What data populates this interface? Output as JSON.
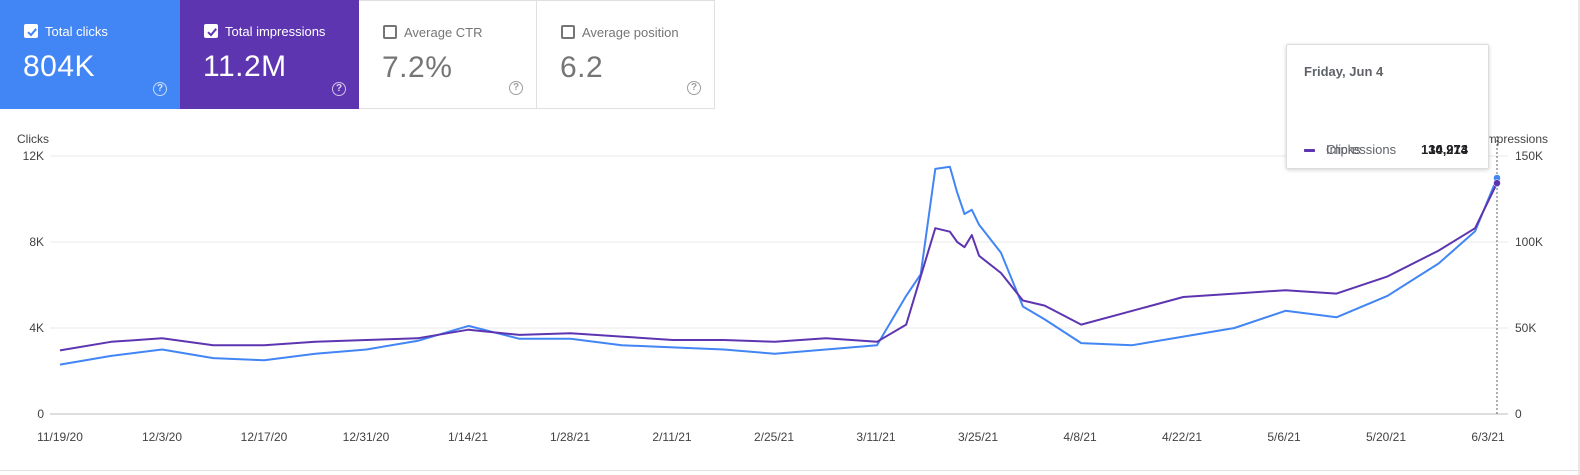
{
  "cards": [
    {
      "label": "Total clicks",
      "value": "804K",
      "active": true,
      "color": "#4285f4"
    },
    {
      "label": "Total impressions",
      "value": "11.2M",
      "active": true,
      "color": "#5e35b1"
    },
    {
      "label": "Average CTR",
      "value": "7.2%",
      "active": false,
      "color": "#ffffff"
    },
    {
      "label": "Average position",
      "value": "6.2",
      "active": false,
      "color": "#ffffff"
    }
  ],
  "help_glyph": "?",
  "tooltip": {
    "date": "Friday, Jun 4",
    "rows": [
      {
        "name": "Clicks",
        "value": "10,974",
        "color": "#4285f4"
      },
      {
        "name": "Impressions",
        "value": "134,213",
        "color": "#5e35b1"
      }
    ]
  },
  "chart_data": {
    "type": "line",
    "left_axis_title": "Clicks",
    "right_axis_title": "Impressions",
    "left_ticks": [
      "0",
      "4K",
      "8K",
      "12K"
    ],
    "right_ticks": [
      "0",
      "50K",
      "100K",
      "150K"
    ],
    "left_ylim": [
      0,
      12000
    ],
    "right_ylim": [
      0,
      150000
    ],
    "x_tick_labels": [
      "11/19/20",
      "12/3/20",
      "12/17/20",
      "12/31/20",
      "1/14/21",
      "1/28/21",
      "2/11/21",
      "2/25/21",
      "3/11/21",
      "3/25/21",
      "4/8/21",
      "4/22/21",
      "5/6/21",
      "5/20/21",
      "6/3/21"
    ],
    "x_range": [
      "2020-11-19",
      "2021-06-04"
    ],
    "grid": true,
    "series": [
      {
        "name": "Clicks",
        "axis": "left",
        "color": "#4285f4",
        "x": [
          "2020-11-19",
          "2020-11-26",
          "2020-12-03",
          "2020-12-10",
          "2020-12-17",
          "2020-12-24",
          "2020-12-31",
          "2021-01-07",
          "2021-01-14",
          "2021-01-21",
          "2021-01-28",
          "2021-02-04",
          "2021-02-11",
          "2021-02-18",
          "2021-02-25",
          "2021-03-04",
          "2021-03-11",
          "2021-03-15",
          "2021-03-17",
          "2021-03-19",
          "2021-03-21",
          "2021-03-22",
          "2021-03-23",
          "2021-03-24",
          "2021-03-25",
          "2021-03-28",
          "2021-03-31",
          "2021-04-03",
          "2021-04-08",
          "2021-04-15",
          "2021-04-22",
          "2021-04-29",
          "2021-05-06",
          "2021-05-13",
          "2021-05-20",
          "2021-05-27",
          "2021-06-01",
          "2021-06-04"
        ],
        "y": [
          2300,
          2700,
          3000,
          2600,
          2500,
          2800,
          3000,
          3400,
          4100,
          3500,
          3500,
          3200,
          3100,
          3000,
          2800,
          3000,
          3200,
          5500,
          6500,
          11400,
          11500,
          10300,
          9300,
          9500,
          8800,
          7500,
          5000,
          4400,
          3300,
          3200,
          3600,
          4000,
          4800,
          4500,
          5500,
          7000,
          8500,
          10974
        ]
      },
      {
        "name": "Impressions",
        "axis": "right",
        "color": "#5e35b1",
        "x": [
          "2020-11-19",
          "2020-11-26",
          "2020-12-03",
          "2020-12-10",
          "2020-12-17",
          "2020-12-24",
          "2020-12-31",
          "2021-01-07",
          "2021-01-14",
          "2021-01-21",
          "2021-01-28",
          "2021-02-04",
          "2021-02-11",
          "2021-02-18",
          "2021-02-25",
          "2021-03-04",
          "2021-03-11",
          "2021-03-15",
          "2021-03-17",
          "2021-03-19",
          "2021-03-21",
          "2021-03-22",
          "2021-03-23",
          "2021-03-24",
          "2021-03-25",
          "2021-03-28",
          "2021-03-31",
          "2021-04-03",
          "2021-04-08",
          "2021-04-15",
          "2021-04-22",
          "2021-04-29",
          "2021-05-06",
          "2021-05-13",
          "2021-05-20",
          "2021-05-27",
          "2021-06-01",
          "2021-06-04"
        ],
        "y": [
          37000,
          42000,
          44000,
          40000,
          40000,
          42000,
          43000,
          44000,
          49000,
          46000,
          47000,
          45000,
          43000,
          43000,
          42000,
          44000,
          42000,
          52000,
          80000,
          108000,
          106000,
          100000,
          97000,
          104000,
          92000,
          82000,
          66000,
          63000,
          52000,
          60000,
          68000,
          70000,
          72000,
          70000,
          80000,
          95000,
          108000,
          134213
        ]
      }
    ]
  }
}
